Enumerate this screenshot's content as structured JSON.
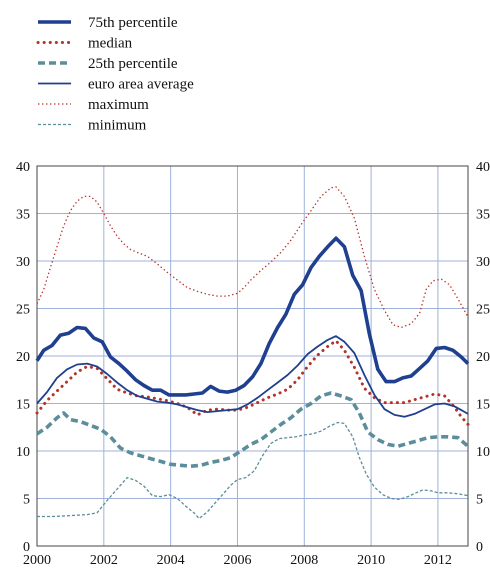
{
  "chart_data": {
    "type": "line",
    "title": "",
    "xlabel": "",
    "ylabel": "",
    "xlim": [
      2000,
      2012.9
    ],
    "ylim": [
      0,
      40
    ],
    "x_ticks": [
      "2000",
      "2002",
      "2004",
      "2006",
      "2008",
      "2010",
      "2012"
    ],
    "y_ticks": [
      "0",
      "5",
      "10",
      "15",
      "20",
      "25",
      "30",
      "35",
      "40"
    ],
    "grid": true,
    "legend_position": "top-left, above plot",
    "series": [
      {
        "name": "75th percentile",
        "color": "#1f3f8f",
        "style": "solid-thick",
        "points": [
          [
            2000.0,
            19.5
          ],
          [
            2000.2,
            20.6
          ],
          [
            2000.45,
            21.1
          ],
          [
            2000.7,
            22.2
          ],
          [
            2000.95,
            22.4
          ],
          [
            2001.2,
            23.0
          ],
          [
            2001.45,
            22.9
          ],
          [
            2001.7,
            21.9
          ],
          [
            2001.95,
            21.5
          ],
          [
            2002.2,
            19.9
          ],
          [
            2002.45,
            19.2
          ],
          [
            2002.7,
            18.4
          ],
          [
            2002.95,
            17.5
          ],
          [
            2003.2,
            16.9
          ],
          [
            2003.45,
            16.4
          ],
          [
            2003.7,
            16.4
          ],
          [
            2003.95,
            15.9
          ],
          [
            2004.2,
            15.9
          ],
          [
            2004.45,
            15.9
          ],
          [
            2004.7,
            16.0
          ],
          [
            2004.95,
            16.1
          ],
          [
            2005.2,
            16.8
          ],
          [
            2005.45,
            16.3
          ],
          [
            2005.7,
            16.2
          ],
          [
            2005.95,
            16.4
          ],
          [
            2006.2,
            16.9
          ],
          [
            2006.45,
            17.8
          ],
          [
            2006.7,
            19.2
          ],
          [
            2006.95,
            21.3
          ],
          [
            2007.2,
            23.0
          ],
          [
            2007.45,
            24.4
          ],
          [
            2007.7,
            26.5
          ],
          [
            2007.95,
            27.5
          ],
          [
            2008.2,
            29.3
          ],
          [
            2008.45,
            30.5
          ],
          [
            2008.7,
            31.5
          ],
          [
            2008.95,
            32.4
          ],
          [
            2009.2,
            31.5
          ],
          [
            2009.45,
            28.5
          ],
          [
            2009.7,
            26.9
          ],
          [
            2009.95,
            22.3
          ],
          [
            2010.2,
            18.6
          ],
          [
            2010.45,
            17.3
          ],
          [
            2010.7,
            17.3
          ],
          [
            2010.95,
            17.7
          ],
          [
            2011.2,
            17.9
          ],
          [
            2011.45,
            18.7
          ],
          [
            2011.7,
            19.5
          ],
          [
            2011.95,
            20.8
          ],
          [
            2012.2,
            20.9
          ],
          [
            2012.45,
            20.6
          ],
          [
            2012.7,
            19.9
          ],
          [
            2012.9,
            19.2
          ]
        ]
      },
      {
        "name": "median",
        "color": "#b5332a",
        "style": "dotted-thick",
        "points": [
          [
            2000.0,
            14.0
          ],
          [
            2000.3,
            15.3
          ],
          [
            2000.6,
            16.3
          ],
          [
            2000.9,
            17.3
          ],
          [
            2001.2,
            18.3
          ],
          [
            2001.5,
            18.9
          ],
          [
            2001.8,
            18.7
          ],
          [
            2002.1,
            17.6
          ],
          [
            2002.4,
            16.5
          ],
          [
            2002.7,
            16.1
          ],
          [
            2003.0,
            15.8
          ],
          [
            2003.3,
            15.7
          ],
          [
            2003.6,
            15.5
          ],
          [
            2003.9,
            15.3
          ],
          [
            2004.2,
            15.0
          ],
          [
            2004.5,
            14.6
          ],
          [
            2004.8,
            13.8
          ],
          [
            2005.1,
            14.3
          ],
          [
            2005.4,
            14.4
          ],
          [
            2005.7,
            14.3
          ],
          [
            2006.0,
            14.3
          ],
          [
            2006.3,
            14.6
          ],
          [
            2006.6,
            15.1
          ],
          [
            2006.9,
            15.6
          ],
          [
            2007.2,
            16.0
          ],
          [
            2007.5,
            16.5
          ],
          [
            2007.8,
            17.5
          ],
          [
            2008.1,
            18.9
          ],
          [
            2008.4,
            20.1
          ],
          [
            2008.7,
            21.0
          ],
          [
            2008.95,
            21.6
          ],
          [
            2009.2,
            20.6
          ],
          [
            2009.5,
            18.8
          ],
          [
            2009.8,
            16.6
          ],
          [
            2010.1,
            15.6
          ],
          [
            2010.4,
            15.1
          ],
          [
            2010.7,
            15.1
          ],
          [
            2011.0,
            15.1
          ],
          [
            2011.3,
            15.4
          ],
          [
            2011.6,
            15.7
          ],
          [
            2011.9,
            16.0
          ],
          [
            2012.2,
            15.8
          ],
          [
            2012.5,
            14.6
          ],
          [
            2012.7,
            13.6
          ],
          [
            2012.9,
            12.8
          ]
        ]
      },
      {
        "name": "25th percentile",
        "color": "#5b8e9a",
        "style": "dashed-thick",
        "points": [
          [
            2000.0,
            11.8
          ],
          [
            2000.3,
            12.5
          ],
          [
            2000.6,
            13.5
          ],
          [
            2000.8,
            14.0
          ],
          [
            2001.0,
            13.3
          ],
          [
            2001.3,
            13.1
          ],
          [
            2001.6,
            12.7
          ],
          [
            2001.9,
            12.3
          ],
          [
            2002.2,
            11.5
          ],
          [
            2002.5,
            10.3
          ],
          [
            2002.8,
            9.8
          ],
          [
            2003.1,
            9.5
          ],
          [
            2003.4,
            9.2
          ],
          [
            2003.7,
            8.9
          ],
          [
            2004.0,
            8.6
          ],
          [
            2004.3,
            8.5
          ],
          [
            2004.6,
            8.4
          ],
          [
            2004.9,
            8.5
          ],
          [
            2005.2,
            8.8
          ],
          [
            2005.5,
            9.0
          ],
          [
            2005.8,
            9.3
          ],
          [
            2006.1,
            10.0
          ],
          [
            2006.4,
            10.7
          ],
          [
            2006.7,
            11.2
          ],
          [
            2007.0,
            12.0
          ],
          [
            2007.3,
            12.8
          ],
          [
            2007.6,
            13.5
          ],
          [
            2007.9,
            14.4
          ],
          [
            2008.2,
            15.0
          ],
          [
            2008.5,
            15.8
          ],
          [
            2008.8,
            16.1
          ],
          [
            2009.1,
            15.8
          ],
          [
            2009.4,
            15.4
          ],
          [
            2009.65,
            14.0
          ],
          [
            2009.9,
            12.0
          ],
          [
            2010.2,
            11.2
          ],
          [
            2010.5,
            10.7
          ],
          [
            2010.8,
            10.5
          ],
          [
            2011.1,
            10.8
          ],
          [
            2011.4,
            11.1
          ],
          [
            2011.7,
            11.4
          ],
          [
            2012.0,
            11.5
          ],
          [
            2012.3,
            11.5
          ],
          [
            2012.6,
            11.4
          ],
          [
            2012.9,
            10.5
          ]
        ]
      },
      {
        "name": "euro area average",
        "color": "#1f3f8f",
        "style": "solid",
        "points": [
          [
            2000.0,
            15.0
          ],
          [
            2000.3,
            16.2
          ],
          [
            2000.6,
            17.7
          ],
          [
            2000.9,
            18.6
          ],
          [
            2001.2,
            19.1
          ],
          [
            2001.5,
            19.2
          ],
          [
            2001.8,
            18.9
          ],
          [
            2002.1,
            18.1
          ],
          [
            2002.4,
            17.2
          ],
          [
            2002.7,
            16.4
          ],
          [
            2003.0,
            15.8
          ],
          [
            2003.3,
            15.5
          ],
          [
            2003.6,
            15.2
          ],
          [
            2003.9,
            15.1
          ],
          [
            2004.2,
            14.9
          ],
          [
            2004.5,
            14.6
          ],
          [
            2004.8,
            14.3
          ],
          [
            2005.1,
            14.1
          ],
          [
            2005.4,
            14.2
          ],
          [
            2005.7,
            14.3
          ],
          [
            2006.0,
            14.4
          ],
          [
            2006.3,
            14.9
          ],
          [
            2006.6,
            15.6
          ],
          [
            2006.9,
            16.4
          ],
          [
            2007.2,
            17.2
          ],
          [
            2007.5,
            18.0
          ],
          [
            2007.8,
            19.0
          ],
          [
            2008.1,
            20.2
          ],
          [
            2008.4,
            21.0
          ],
          [
            2008.7,
            21.7
          ],
          [
            2008.95,
            22.1
          ],
          [
            2009.2,
            21.5
          ],
          [
            2009.5,
            20.3
          ],
          [
            2009.8,
            18.0
          ],
          [
            2010.1,
            15.9
          ],
          [
            2010.4,
            14.4
          ],
          [
            2010.7,
            13.8
          ],
          [
            2011.0,
            13.6
          ],
          [
            2011.3,
            13.9
          ],
          [
            2011.6,
            14.4
          ],
          [
            2011.9,
            14.9
          ],
          [
            2012.2,
            15.0
          ],
          [
            2012.5,
            14.7
          ],
          [
            2012.7,
            14.3
          ],
          [
            2012.9,
            13.9
          ]
        ]
      },
      {
        "name": "maximum",
        "color": "#b5332a",
        "style": "dotted-thin",
        "points": [
          [
            2000.0,
            25.5
          ],
          [
            2000.2,
            27.0
          ],
          [
            2000.4,
            29.3
          ],
          [
            2000.6,
            31.5
          ],
          [
            2000.8,
            33.7
          ],
          [
            2001.0,
            35.3
          ],
          [
            2001.2,
            36.3
          ],
          [
            2001.4,
            36.8
          ],
          [
            2001.6,
            36.8
          ],
          [
            2001.8,
            36.2
          ],
          [
            2002.0,
            35.0
          ],
          [
            2002.2,
            33.7
          ],
          [
            2002.4,
            32.6
          ],
          [
            2002.6,
            31.8
          ],
          [
            2002.8,
            31.2
          ],
          [
            2003.0,
            30.9
          ],
          [
            2003.3,
            30.5
          ],
          [
            2003.6,
            29.7
          ],
          [
            2003.9,
            28.8
          ],
          [
            2004.2,
            28.0
          ],
          [
            2004.5,
            27.2
          ],
          [
            2004.8,
            26.8
          ],
          [
            2005.1,
            26.5
          ],
          [
            2005.4,
            26.3
          ],
          [
            2005.7,
            26.3
          ],
          [
            2006.0,
            26.6
          ],
          [
            2006.2,
            27.2
          ],
          [
            2006.4,
            28.0
          ],
          [
            2006.7,
            29.0
          ],
          [
            2007.0,
            29.9
          ],
          [
            2007.3,
            30.9
          ],
          [
            2007.6,
            32.2
          ],
          [
            2007.9,
            33.8
          ],
          [
            2008.2,
            35.3
          ],
          [
            2008.5,
            36.8
          ],
          [
            2008.8,
            37.7
          ],
          [
            2008.95,
            37.8
          ],
          [
            2009.2,
            36.8
          ],
          [
            2009.5,
            34.5
          ],
          [
            2009.8,
            30.5
          ],
          [
            2010.1,
            27.0
          ],
          [
            2010.4,
            24.8
          ],
          [
            2010.65,
            23.3
          ],
          [
            2010.9,
            23.0
          ],
          [
            2011.2,
            23.4
          ],
          [
            2011.45,
            24.5
          ],
          [
            2011.65,
            27.0
          ],
          [
            2011.85,
            27.9
          ],
          [
            2012.1,
            28.1
          ],
          [
            2012.35,
            27.5
          ],
          [
            2012.6,
            26.0
          ],
          [
            2012.9,
            24.1
          ]
        ]
      },
      {
        "name": "minimum",
        "color": "#5b8e9a",
        "style": "dashed-thin",
        "points": [
          [
            2000.0,
            3.1
          ],
          [
            2000.5,
            3.1
          ],
          [
            2001.0,
            3.2
          ],
          [
            2001.5,
            3.3
          ],
          [
            2001.8,
            3.5
          ],
          [
            2002.1,
            4.8
          ],
          [
            2002.4,
            6.0
          ],
          [
            2002.7,
            7.2
          ],
          [
            2002.95,
            6.9
          ],
          [
            2003.2,
            6.3
          ],
          [
            2003.45,
            5.3
          ],
          [
            2003.7,
            5.2
          ],
          [
            2003.95,
            5.4
          ],
          [
            2004.2,
            5.0
          ],
          [
            2004.45,
            4.2
          ],
          [
            2004.7,
            3.5
          ],
          [
            2004.85,
            2.9
          ],
          [
            2005.1,
            3.6
          ],
          [
            2005.35,
            4.6
          ],
          [
            2005.6,
            5.6
          ],
          [
            2005.8,
            6.4
          ],
          [
            2006.0,
            7.0
          ],
          [
            2006.25,
            7.2
          ],
          [
            2006.5,
            7.9
          ],
          [
            2006.75,
            9.5
          ],
          [
            2007.0,
            10.8
          ],
          [
            2007.25,
            11.3
          ],
          [
            2007.5,
            11.4
          ],
          [
            2007.75,
            11.5
          ],
          [
            2008.0,
            11.7
          ],
          [
            2008.25,
            11.8
          ],
          [
            2008.5,
            12.1
          ],
          [
            2008.75,
            12.6
          ],
          [
            2009.0,
            13.0
          ],
          [
            2009.2,
            12.9
          ],
          [
            2009.45,
            11.5
          ],
          [
            2009.65,
            9.3
          ],
          [
            2009.85,
            7.6
          ],
          [
            2010.1,
            6.2
          ],
          [
            2010.35,
            5.4
          ],
          [
            2010.6,
            5.0
          ],
          [
            2010.85,
            4.9
          ],
          [
            2011.1,
            5.2
          ],
          [
            2011.35,
            5.6
          ],
          [
            2011.55,
            5.9
          ],
          [
            2011.8,
            5.8
          ],
          [
            2012.0,
            5.6
          ],
          [
            2012.3,
            5.6
          ],
          [
            2012.6,
            5.5
          ],
          [
            2012.9,
            5.3
          ]
        ]
      }
    ]
  }
}
